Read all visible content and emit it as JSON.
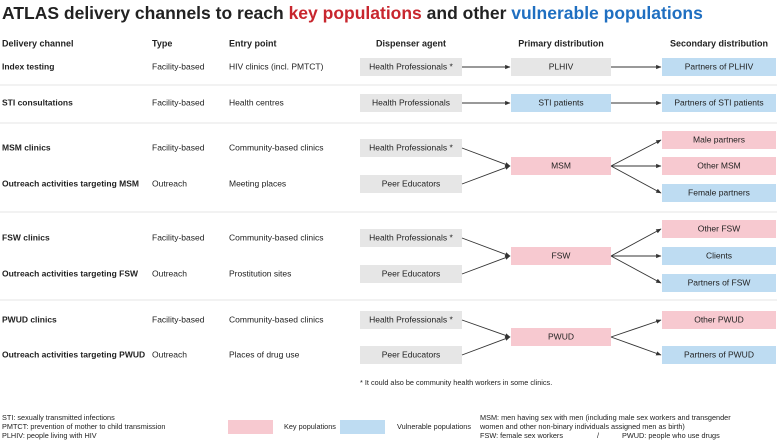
{
  "title": {
    "prefix": "ATLAS delivery channels to reach ",
    "key": "key populations",
    "middle": " and other ",
    "vulnerable": "vulnerable populations"
  },
  "headers": {
    "channel": "Delivery channel",
    "type": "Type",
    "entry": "Entry point",
    "dispenser": "Dispenser agent",
    "primary": "Primary distribution",
    "secondary": "Secondary distribution"
  },
  "rows": [
    {
      "channel": "Index testing",
      "type": "Facility-based",
      "entry": "HIV clinics (incl. PMTCT)",
      "dispenser": "Health Professionals *"
    },
    {
      "channel": "STI consultations",
      "type": "Facility-based",
      "entry": "Health centres",
      "dispenser": "Health Professionals"
    },
    {
      "channel": "MSM clinics",
      "type": "Facility-based",
      "entry": "Community-based clinics",
      "dispenser": "Health Professionals *"
    },
    {
      "channel": "Outreach activities targeting MSM",
      "type": "Outreach",
      "entry": "Meeting places",
      "dispenser": "Peer Educators"
    },
    {
      "channel": "FSW clinics",
      "type": "Facility-based",
      "entry": "Community-based clinics",
      "dispenser": "Health Professionals *"
    },
    {
      "channel": "Outreach activities targeting FSW",
      "type": "Outreach",
      "entry": "Prostitution sites",
      "dispenser": "Peer Educators"
    },
    {
      "channel": "PWUD clinics",
      "type": "Facility-based",
      "entry": "Community-based clinics",
      "dispenser": "Health Professionals *"
    },
    {
      "channel": "Outreach activities targeting PWUD",
      "type": "Outreach",
      "entry": "Places of drug use",
      "dispenser": "Peer Educators"
    }
  ],
  "primary": [
    {
      "label": "PLHIV",
      "kind": "neutral"
    },
    {
      "label": "STI patients",
      "kind": "vulnerable"
    },
    {
      "label": "MSM",
      "kind": "key"
    },
    {
      "label": "FSW",
      "kind": "key"
    },
    {
      "label": "PWUD",
      "kind": "key"
    }
  ],
  "secondary": [
    {
      "label": "Partners of PLHIV",
      "kind": "vulnerable"
    },
    {
      "label": "Partners of STI patients",
      "kind": "vulnerable"
    },
    {
      "label": "Male partners",
      "kind": "key"
    },
    {
      "label": "Other MSM",
      "kind": "key"
    },
    {
      "label": "Female partners",
      "kind": "vulnerable"
    },
    {
      "label": "Other FSW",
      "kind": "key"
    },
    {
      "label": "Clients",
      "kind": "vulnerable"
    },
    {
      "label": "Partners of FSW",
      "kind": "vulnerable"
    },
    {
      "label": "Other PWUD",
      "kind": "key"
    },
    {
      "label": "Partners of PWUD",
      "kind": "vulnerable"
    }
  ],
  "footnote": "* It could also be community health workers in some clinics.",
  "abbreviations": [
    "STI: sexually transmitted infections",
    "PMTCT: prevention of mother to child transmission",
    "PLHIV: people living with HIV"
  ],
  "legend": {
    "key": "Key populations",
    "vulnerable": "Vulnerable populations"
  },
  "definitions": {
    "msm_1": "MSM: men having sex with men (including male sex workers and transgender",
    "msm_2": "women and other non-binary individuals assigned men as birth)",
    "fsw": "FSW: female sex workers",
    "separator": "/",
    "pwud": "PWUD: people who use drugs"
  }
}
